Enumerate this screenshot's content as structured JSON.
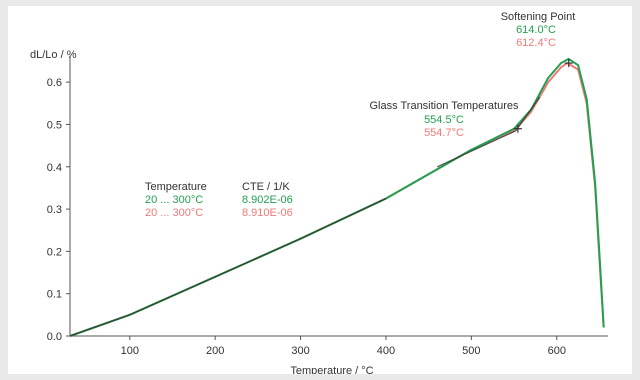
{
  "chart_data": {
    "type": "line",
    "xlabel": "Temperature / °C",
    "ylabel": "dL/Lo / %",
    "xlim": [
      30,
      660
    ],
    "ylim": [
      0,
      0.65
    ],
    "xticks": [
      100,
      200,
      300,
      400,
      500,
      600
    ],
    "xtick_labels": [
      "100",
      "200",
      "300",
      "400",
      "500",
      "600"
    ],
    "yticks": [
      0.0,
      0.1,
      0.2,
      0.3,
      0.4,
      0.5,
      0.6
    ],
    "ytick_labels": [
      "0.0",
      "0.1",
      "0.2",
      "0.3",
      "0.4",
      "0.5",
      "0.6"
    ],
    "grid": false,
    "colors": {
      "green": "#22a050",
      "red": "#f07a7a",
      "dark": "#333333",
      "axis": "#555555"
    },
    "series": [
      {
        "color": "#f07a7a",
        "x": [
          30,
          100,
          200,
          300,
          400,
          500,
          550,
          570,
          590,
          605,
          612.4,
          625,
          635,
          645,
          650,
          655
        ],
        "y": [
          0.0,
          0.05,
          0.14,
          0.23,
          0.325,
          0.44,
          0.485,
          0.53,
          0.6,
          0.635,
          0.645,
          0.63,
          0.55,
          0.35,
          0.18,
          0.02
        ]
      },
      {
        "color": "#22a050",
        "x": [
          30,
          100,
          200,
          300,
          400,
          500,
          550,
          570,
          590,
          605,
          614.0,
          625,
          635,
          645,
          650,
          655
        ],
        "y": [
          0.0,
          0.05,
          0.14,
          0.23,
          0.325,
          0.44,
          0.49,
          0.535,
          0.61,
          0.645,
          0.655,
          0.64,
          0.56,
          0.36,
          0.19,
          0.02
        ]
      }
    ],
    "tangent_lines": [
      {
        "x": [
          30,
          100,
          200,
          300,
          400
        ],
        "y": [
          0.0,
          0.05,
          0.14,
          0.23,
          0.325
        ]
      },
      {
        "x": [
          460,
          552
        ],
        "y": [
          0.4,
          0.485
        ]
      },
      {
        "x": [
          552,
          580
        ],
        "y": [
          0.485,
          0.565
        ]
      }
    ],
    "markers": [
      {
        "x": 554.5,
        "y": 0.49,
        "symbol": "+"
      },
      {
        "x": 614.0,
        "y": 0.645,
        "symbol": "+"
      }
    ],
    "annotations": {
      "softening": {
        "title": "Softening Point",
        "green": "614.0°C",
        "red": "612.4°C"
      },
      "glass": {
        "title": "Glass Transition Temperatures",
        "green": "554.5°C",
        "red": "554.7°C"
      },
      "table": {
        "col1_header": "Temperature",
        "col2_header": "CTE / 1/K",
        "green_range": "20 ... 300°C",
        "green_cte": "8.902E-06",
        "red_range": "20 ... 300°C",
        "red_cte": "8.910E-06"
      }
    }
  }
}
